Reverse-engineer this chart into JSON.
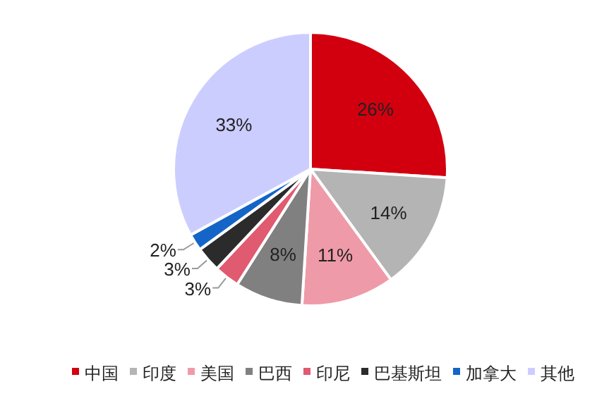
{
  "chart_data": {
    "type": "pie",
    "categories": [
      "中国",
      "印度",
      "美国",
      "巴西",
      "印尼",
      "巴基斯坦",
      "加拿大",
      "其他"
    ],
    "values": [
      26,
      14,
      11,
      8,
      3,
      3,
      2,
      33
    ],
    "value_labels": [
      "26%",
      "14%",
      "11%",
      "8%",
      "3%",
      "3%",
      "2%",
      "33%"
    ],
    "colors": [
      "#d2000f",
      "#b4b4b4",
      "#ef9aa8",
      "#808080",
      "#e05a70",
      "#2b2b2b",
      "#1565c8",
      "#cccdff"
    ],
    "legend": "bottom"
  }
}
